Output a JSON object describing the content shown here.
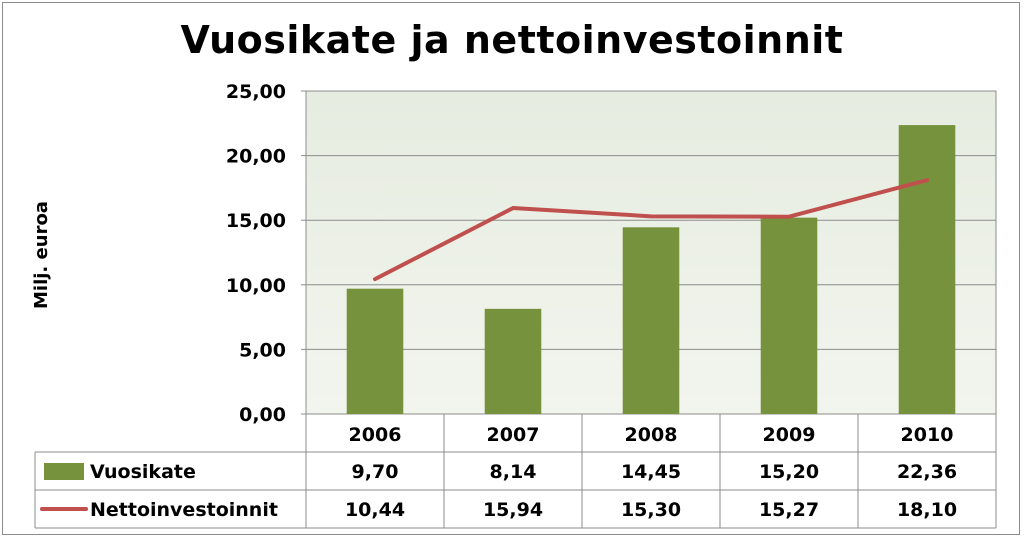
{
  "chart_data": {
    "type": "bar",
    "title": "Vuosikate ja nettoinvestoinnit",
    "ylabel": "Milj. euroa",
    "xlabel": "",
    "ylim": [
      0,
      25
    ],
    "y_ticks": [
      "0,00",
      "5,00",
      "10,00",
      "15,00",
      "20,00",
      "25,00"
    ],
    "categories": [
      "2006",
      "2007",
      "2008",
      "2009",
      "2010"
    ],
    "grid": true,
    "legend": "data-table-left",
    "series": [
      {
        "name": "Vuosikate",
        "type": "bar",
        "color": "#76923c",
        "values": [
          9.7,
          8.14,
          14.45,
          15.2,
          22.36
        ],
        "labels": [
          "9,70",
          "8,14",
          "14,45",
          "15,20",
          "22,36"
        ]
      },
      {
        "name": "Nettoinvestoinnit",
        "type": "line",
        "color": "#c0504d",
        "values": [
          10.44,
          15.94,
          15.3,
          15.27,
          18.1
        ],
        "labels": [
          "10,44",
          "15,94",
          "15,30",
          "15,27",
          "18,10"
        ]
      }
    ]
  }
}
